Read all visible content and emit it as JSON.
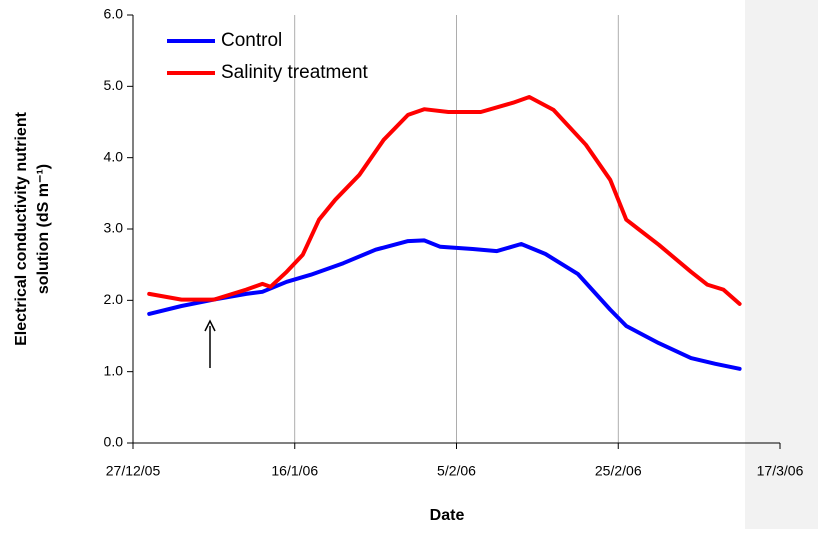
{
  "chart_data": {
    "type": "line",
    "xlabel": "Date",
    "ylabel": [
      "Electrical conductivity nutrient",
      "solution (dS m⁻¹)"
    ],
    "xlim": [
      "2005-12-27",
      "2006-03-17"
    ],
    "xticks": [
      {
        "value": "2005-12-27",
        "label": "27/12/05"
      },
      {
        "value": "2006-01-16",
        "label": "16/1/06"
      },
      {
        "value": "2006-02-05",
        "label": "5/2/06"
      },
      {
        "value": "2006-02-25",
        "label": "25/2/06"
      },
      {
        "value": "2006-03-17",
        "label": "17/3/06"
      }
    ],
    "ylim": [
      0,
      6
    ],
    "yticks": [
      {
        "value": 0,
        "label": "0.0"
      },
      {
        "value": 1,
        "label": "1.0"
      },
      {
        "value": 2,
        "label": "2.0"
      },
      {
        "value": 3,
        "label": "3.0"
      },
      {
        "value": 4,
        "label": "4.0"
      },
      {
        "value": 5,
        "label": "5.0"
      },
      {
        "value": 6,
        "label": "6.0"
      }
    ],
    "grid": "x",
    "legend": "top-left",
    "series": [
      {
        "name": "Control",
        "color": "#0000ff",
        "x": [
          "2005-12-29",
          "2006-01-02",
          "2006-01-06",
          "2006-01-10",
          "2006-01-12",
          "2006-01-15",
          "2006-01-18",
          "2006-01-22",
          "2006-01-26",
          "2006-01-30",
          "2006-02-01",
          "2006-02-03",
          "2006-02-07",
          "2006-02-10",
          "2006-02-13",
          "2006-02-16",
          "2006-02-20",
          "2006-02-24",
          "2006-02-26",
          "2006-03-02",
          "2006-03-06",
          "2006-03-09",
          "2006-03-12"
        ],
        "values": [
          1.81,
          1.92,
          2.01,
          2.09,
          2.12,
          2.26,
          2.36,
          2.52,
          2.71,
          2.83,
          2.84,
          2.75,
          2.72,
          2.69,
          2.79,
          2.65,
          2.37,
          1.87,
          1.64,
          1.4,
          1.19,
          1.11,
          1.04
        ]
      },
      {
        "name": "Salinity treatment",
        "color": "#ff0000",
        "x": [
          "2005-12-29",
          "2006-01-02",
          "2006-01-06",
          "2006-01-10",
          "2006-01-12",
          "2006-01-13",
          "2006-01-15",
          "2006-01-17",
          "2006-01-19",
          "2006-01-21",
          "2006-01-24",
          "2006-01-27",
          "2006-01-30",
          "2006-02-01",
          "2006-02-04",
          "2006-02-08",
          "2006-02-12",
          "2006-02-14",
          "2006-02-17",
          "2006-02-21",
          "2006-02-24",
          "2006-02-26",
          "2006-03-02",
          "2006-03-06",
          "2006-03-08",
          "2006-03-10",
          "2006-03-12"
        ],
        "values": [
          2.09,
          2.01,
          2.01,
          2.15,
          2.23,
          2.19,
          2.4,
          2.64,
          3.13,
          3.41,
          3.76,
          4.25,
          4.6,
          4.68,
          4.64,
          4.64,
          4.77,
          4.85,
          4.67,
          4.18,
          3.69,
          3.13,
          2.78,
          2.4,
          2.22,
          2.15,
          1.95
        ]
      }
    ]
  }
}
